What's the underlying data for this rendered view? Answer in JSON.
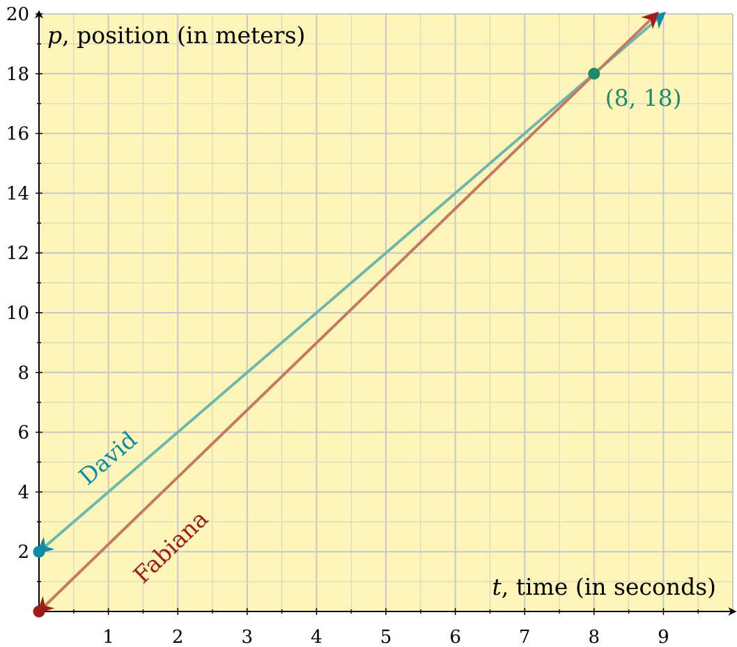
{
  "chart_data": {
    "type": "line",
    "title": "",
    "xlabel": {
      "var": "t",
      "text": ", time (in seconds)"
    },
    "ylabel": {
      "var": "p",
      "text": ", position (in meters)"
    },
    "xlim": [
      0,
      10
    ],
    "ylim": [
      0,
      20
    ],
    "x_ticks": [
      "1",
      "2",
      "3",
      "4",
      "5",
      "6",
      "7",
      "8",
      "9"
    ],
    "y_ticks": [
      "2",
      "4",
      "6",
      "8",
      "10",
      "12",
      "14",
      "16",
      "18",
      "20"
    ],
    "grid": true,
    "background": "#fdf6b8",
    "series": [
      {
        "name": "David",
        "x": [
          0,
          9
        ],
        "y": [
          2,
          20
        ],
        "line_color": "#6fb7ad",
        "label_color": "#0e8ba6",
        "start_point": [
          0,
          2
        ]
      },
      {
        "name": "Fabiana",
        "x": [
          0,
          8.9
        ],
        "y": [
          0,
          20
        ],
        "line_color": "#c77862",
        "label_color": "#a01c1c",
        "start_point": [
          0,
          0
        ]
      }
    ],
    "annotations": [
      {
        "text": "(8, 18)",
        "x": 8,
        "y": 18,
        "color": "#1f8a6a"
      }
    ]
  }
}
